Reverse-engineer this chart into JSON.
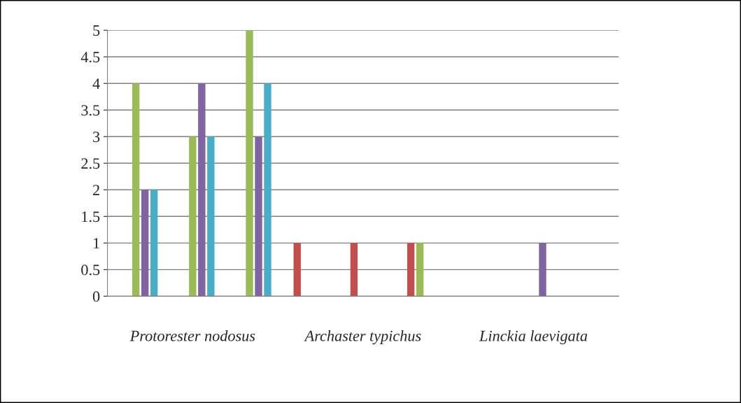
{
  "chart_data": {
    "type": "bar",
    "categories": [
      null,
      "Protorester nodosus",
      null,
      null,
      "Archaster typichus",
      null,
      null,
      "Linckia laevigata",
      null
    ],
    "series": [
      {
        "color": "#4f81bd",
        "values": [
          0,
          0,
          0,
          0,
          0,
          0,
          0,
          0,
          0
        ]
      },
      {
        "color": "#c0504d",
        "values": [
          0,
          0,
          0,
          1,
          1,
          1,
          0,
          0,
          0
        ]
      },
      {
        "color": "#9bbb59",
        "values": [
          4,
          3,
          5,
          0,
          0,
          1,
          0,
          0,
          0
        ]
      },
      {
        "color": "#8064a2",
        "values": [
          2,
          4,
          3,
          0,
          0,
          0,
          0,
          1,
          0
        ]
      },
      {
        "color": "#4bacc6",
        "values": [
          2,
          3,
          4,
          0,
          0,
          0,
          0,
          0,
          0
        ]
      }
    ],
    "ylim": [
      0,
      5
    ],
    "yticks": [
      0,
      0.5,
      1,
      1.5,
      2,
      2.5,
      3,
      3.5,
      4,
      4.5,
      5
    ],
    "grid": "y"
  }
}
